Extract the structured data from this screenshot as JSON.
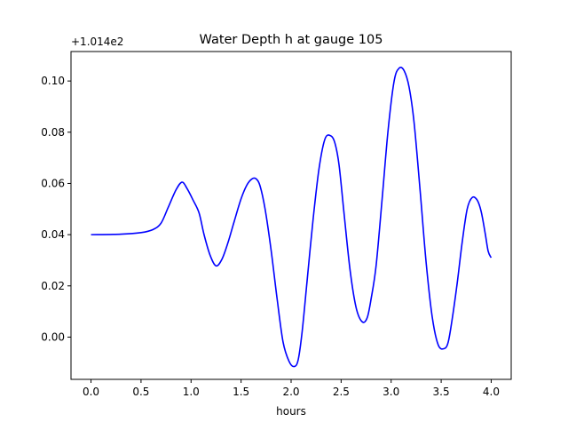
{
  "chart_data": {
    "type": "line",
    "title": "Water Depth h at gauge 105",
    "xlabel": "hours",
    "ylabel": "",
    "y_offset_label": "+1.014e2",
    "xlim": [
      -0.2,
      4.2
    ],
    "ylim": [
      -0.0165,
      0.1115
    ],
    "x_ticks": [
      0.0,
      0.5,
      1.0,
      1.5,
      2.0,
      2.5,
      3.0,
      3.5,
      4.0
    ],
    "x_tick_labels": [
      "0.0",
      "0.5",
      "1.0",
      "1.5",
      "2.0",
      "2.5",
      "3.0",
      "3.5",
      "4.0"
    ],
    "y_ticks": [
      0.0,
      0.02,
      0.04,
      0.06,
      0.08,
      0.1
    ],
    "y_tick_labels": [
      "0.00",
      "0.02",
      "0.04",
      "0.06",
      "0.08",
      "0.10"
    ],
    "grid": false,
    "series": [
      {
        "color": "#0000ff",
        "x": [
          0.0,
          0.3,
          0.5,
          0.62,
          0.7,
          0.77,
          0.85,
          0.91,
          0.96,
          1.02,
          1.08,
          1.13,
          1.19,
          1.25,
          1.31,
          1.37,
          1.43,
          1.5,
          1.56,
          1.61,
          1.65,
          1.69,
          1.74,
          1.8,
          1.86,
          1.92,
          1.98,
          2.03,
          2.07,
          2.11,
          2.16,
          2.22,
          2.28,
          2.34,
          2.4,
          2.44,
          2.48,
          2.53,
          2.59,
          2.65,
          2.71,
          2.76,
          2.8,
          2.85,
          2.91,
          2.97,
          3.03,
          3.08,
          3.13,
          3.18,
          3.23,
          3.29,
          3.35,
          3.41,
          3.47,
          3.53,
          3.57,
          3.61,
          3.66,
          3.71,
          3.76,
          3.81,
          3.86,
          3.9,
          3.94,
          3.97,
          4.0
        ],
        "y": [
          0.04,
          0.0402,
          0.0408,
          0.042,
          0.0445,
          0.0505,
          0.0575,
          0.0605,
          0.058,
          0.0535,
          0.0485,
          0.04,
          0.032,
          0.0278,
          0.0305,
          0.037,
          0.045,
          0.054,
          0.0595,
          0.0618,
          0.0618,
          0.059,
          0.05,
          0.034,
          0.015,
          -0.002,
          -0.0095,
          -0.0115,
          -0.009,
          0.002,
          0.022,
          0.046,
          0.066,
          0.0775,
          0.0785,
          0.0755,
          0.067,
          0.048,
          0.026,
          0.0115,
          0.006,
          0.0075,
          0.015,
          0.028,
          0.054,
          0.081,
          0.1,
          0.105,
          0.104,
          0.0975,
          0.0835,
          0.057,
          0.029,
          0.008,
          -0.003,
          -0.0045,
          -0.002,
          0.007,
          0.021,
          0.037,
          0.05,
          0.0545,
          0.0535,
          0.049,
          0.0405,
          0.0335,
          0.031
        ]
      }
    ]
  }
}
